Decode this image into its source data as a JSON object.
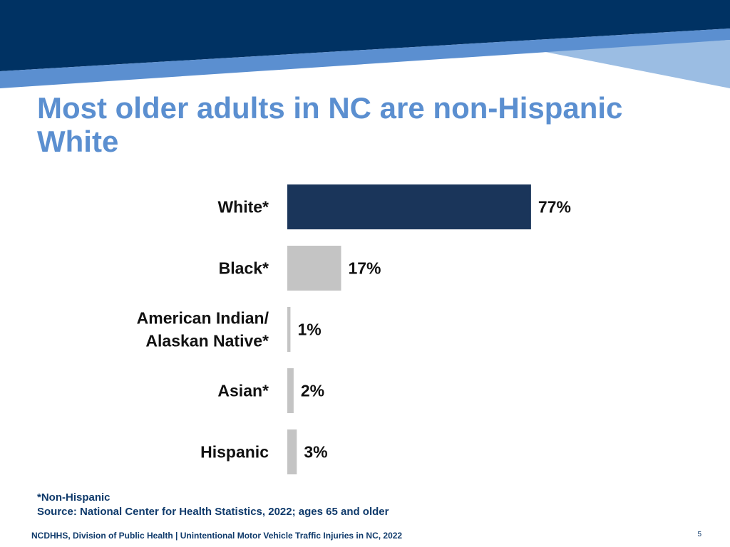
{
  "slide": {
    "title": "Most older adults in NC are non-Hispanic White",
    "footnote": "*Non-Hispanic",
    "source": "Source: National Center for Health Statistics, 2022; ages 65 and older",
    "footer": "NCDHHS, Division of Public Health | Unintentional Motor Vehicle Traffic Injuries in NC, 2022",
    "page_number": "5"
  },
  "colors": {
    "banner_dark": "#003263",
    "banner_mid": "#5b8fd0",
    "banner_light": "#9bbde3",
    "title": "#5b8fd0",
    "highlight_bar": "#1a355a",
    "other_bar": "#c4c4c4"
  },
  "chart_data": {
    "type": "bar",
    "orientation": "horizontal",
    "categories": [
      [
        "White*"
      ],
      [
        "Black*"
      ],
      [
        "American Indian/",
        "Alaskan Native*"
      ],
      [
        "Asian*"
      ],
      [
        "Hispanic"
      ]
    ],
    "values": [
      77,
      17,
      1,
      2,
      3
    ],
    "value_labels": [
      "77%",
      "17%",
      "1%",
      "2%",
      "3%"
    ],
    "highlight_index": 0,
    "xlim": [
      0,
      100
    ]
  }
}
